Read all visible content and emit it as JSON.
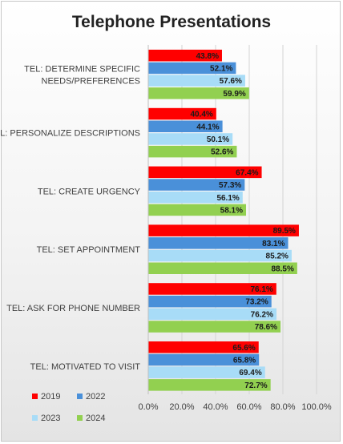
{
  "chart_data": {
    "type": "bar",
    "orientation": "horizontal",
    "title": "Telephone Presentations",
    "categories": [
      [
        "TEL: DETERMINE SPECIFIC",
        "NEEDS/PREFERENCES"
      ],
      [
        "TEL: PERSONALIZE DESCRIPTIONS"
      ],
      [
        "TEL: CREATE URGENCY"
      ],
      [
        "TEL: SET APPOINTMENT"
      ],
      [
        "TEL: ASK FOR PHONE NUMBER"
      ],
      [
        "TEL: MOTIVATED TO VISIT"
      ]
    ],
    "series": [
      {
        "name": "2019",
        "color": "#ff0000",
        "values": [
          43.8,
          40.4,
          67.4,
          89.5,
          76.1,
          65.6
        ]
      },
      {
        "name": "2022",
        "color": "#4a90d9",
        "values": [
          52.1,
          44.1,
          57.3,
          83.1,
          73.2,
          65.8
        ]
      },
      {
        "name": "2023",
        "color": "#a8dcf7",
        "values": [
          57.6,
          50.1,
          56.1,
          85.2,
          76.2,
          69.4
        ]
      },
      {
        "name": "2024",
        "color": "#92d050",
        "values": [
          59.9,
          52.6,
          58.1,
          88.5,
          78.6,
          72.7
        ]
      }
    ],
    "x_ticks": [
      "0.0%",
      "20.0%",
      "40.0%",
      "60.0%",
      "80.0%",
      "100.0%"
    ],
    "xlim": [
      0,
      100
    ],
    "value_format": "%",
    "grid": "vertical",
    "legend": "bottom-left"
  }
}
